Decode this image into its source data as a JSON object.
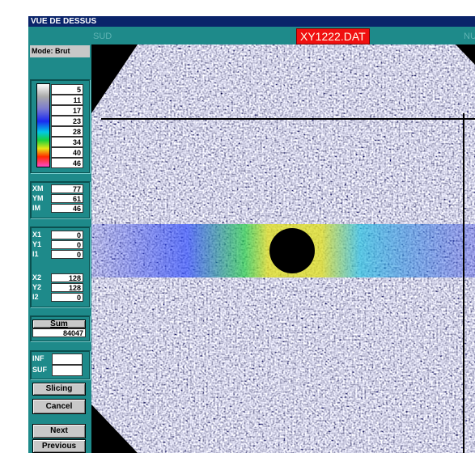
{
  "window": {
    "title": "VUE DE DESSUS",
    "left_label": "SUD",
    "file": "XY1222.DAT",
    "right_label": "NU"
  },
  "panel": {
    "mode": "Mode: Brut",
    "scale": [
      5,
      11,
      17,
      23,
      28,
      34,
      40,
      46
    ],
    "cursor": [
      {
        "label": "XM",
        "value": 77
      },
      {
        "label": "YM",
        "value": 61
      },
      {
        "label": "IM",
        "value": 46
      }
    ],
    "point1": [
      {
        "label": "X1",
        "value": 0
      },
      {
        "label": "Y1",
        "value": 0
      },
      {
        "label": "I1",
        "value": 0
      }
    ],
    "point2": [
      {
        "label": "X2",
        "value": 128
      },
      {
        "label": "Y2",
        "value": 128
      },
      {
        "label": "I2",
        "value": 0
      }
    ],
    "sum_button": "Sum",
    "sum": 84047,
    "inf": "INF",
    "sup": "SUF",
    "slicing": "Slicing",
    "cancel": "Cancel",
    "next": "Next",
    "previous": "Previous"
  }
}
